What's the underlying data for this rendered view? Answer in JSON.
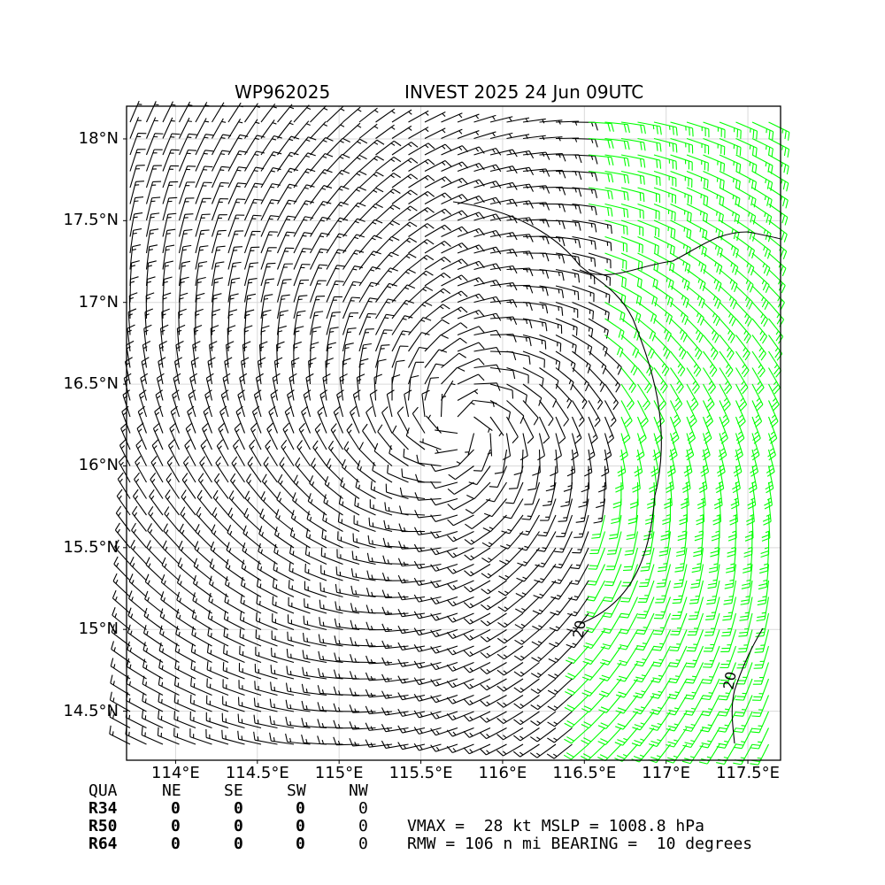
{
  "title": {
    "storm_id": "WP962025",
    "name_time": "INVEST 2025 24 Jun 09UTC"
  },
  "chart_data": {
    "type": "wind-barb map",
    "xticks": [
      "114°E",
      "114.5°E",
      "115°E",
      "115.5°E",
      "116°E",
      "116.5°E",
      "117°E",
      "117.5°E"
    ],
    "xtick_values": [
      114.0,
      114.5,
      115.0,
      115.5,
      116.0,
      116.5,
      117.0,
      117.5
    ],
    "yticks": [
      "18°N",
      "17.5°N",
      "17°N",
      "16.5°N",
      "16°N",
      "15.5°N",
      "15°N",
      "14.5°N"
    ],
    "ytick_values": [
      18.0,
      17.5,
      17.0,
      16.5,
      16.0,
      15.5,
      15.0,
      14.5
    ],
    "xlim": [
      113.7,
      117.7
    ],
    "ylim": [
      14.2,
      18.2
    ],
    "grid": true,
    "center": {
      "lon": 115.75,
      "lat": 16.25
    },
    "contour_label": "20",
    "contour_level_kt": 20,
    "colors": {
      "barbs_below_20kt": "#000000",
      "barbs_20kt_plus": "#00ff00"
    }
  },
  "radii_table": {
    "header": [
      "QUA",
      "NE",
      "SE",
      "SW",
      "NW"
    ],
    "rows": [
      {
        "label": "R34",
        "values": [
          "0",
          "0",
          "0",
          "0"
        ]
      },
      {
        "label": "R50",
        "values": [
          "0",
          "0",
          "0",
          "0"
        ]
      },
      {
        "label": "R64",
        "values": [
          "0",
          "0",
          "0",
          "0"
        ]
      }
    ]
  },
  "summary": {
    "line1": "VMAX =  28 kt MSLP = 1008.8 hPa",
    "line2": "RMW = 106 n mi BEARING =  10 degrees"
  }
}
